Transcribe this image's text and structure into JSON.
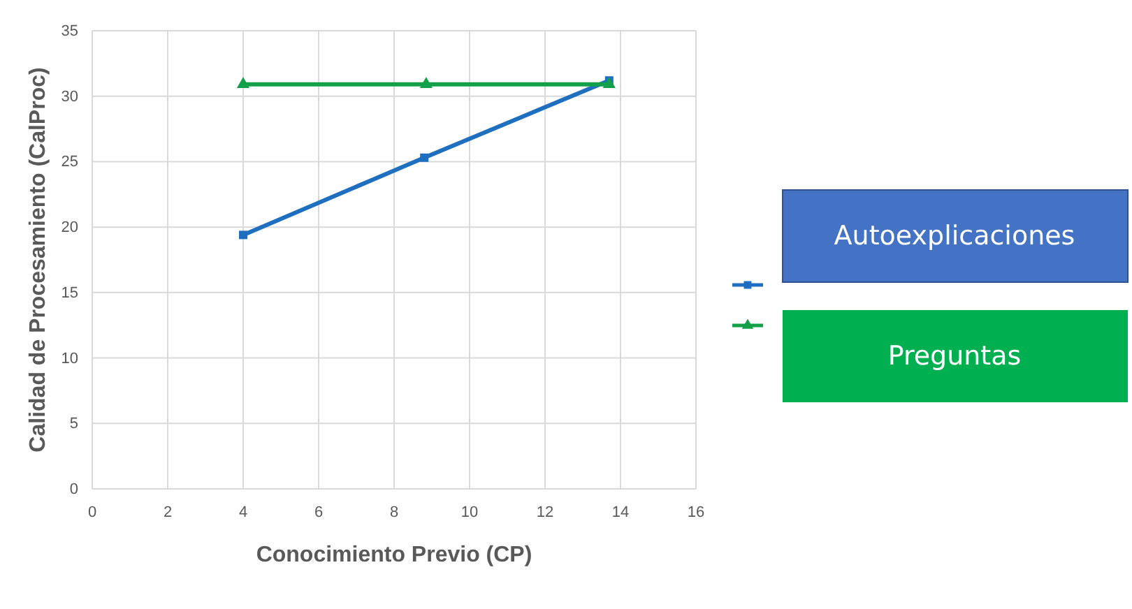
{
  "chart_data": {
    "type": "line",
    "xlabel": "Conocimiento Previo (CP)",
    "ylabel": "Calidad de Procesamiento (CalProc)",
    "xlim": [
      0,
      16
    ],
    "xticks": [
      0,
      2,
      4,
      6,
      8,
      10,
      12,
      14,
      16
    ],
    "ylim": [
      0,
      35
    ],
    "yticks": [
      0,
      5,
      10,
      15,
      20,
      25,
      30,
      35
    ],
    "grid": true,
    "legend": "right",
    "series": [
      {
        "name": "Autoexplicaciones",
        "color": "#1f6fc0",
        "marker": "square",
        "x": [
          4.0,
          8.8,
          13.7
        ],
        "values": [
          19.4,
          25.3,
          31.2
        ]
      },
      {
        "name": "Preguntas",
        "color": "#12a04a",
        "marker": "triangle",
        "x": [
          4.0,
          8.85,
          13.7
        ],
        "values": [
          30.9,
          30.9,
          30.9
        ]
      }
    ]
  }
}
